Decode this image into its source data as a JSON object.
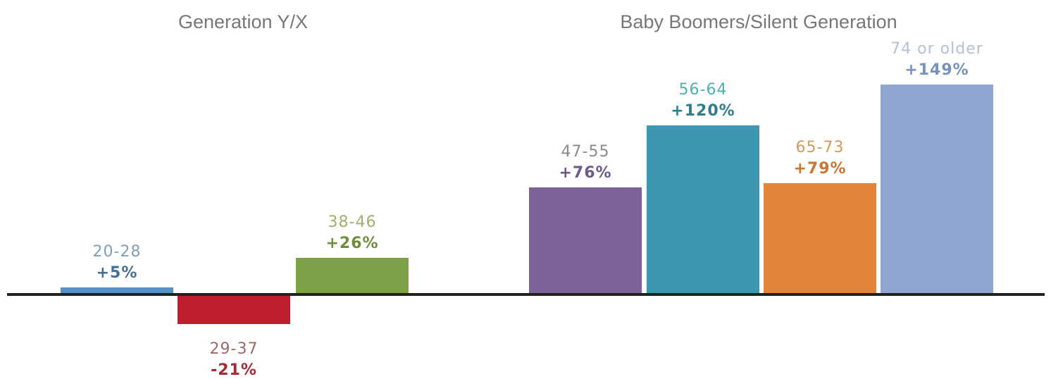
{
  "chart_data": {
    "type": "bar",
    "groups": [
      {
        "title": "Generation Y/X",
        "categories": [
          "20-28",
          "29-37",
          "38-46"
        ]
      },
      {
        "title": "Baby Boomers/Silent Generation",
        "categories": [
          "47-55",
          "56-64",
          "65-73",
          "74 or older"
        ]
      }
    ],
    "categories": [
      "20-28",
      "29-37",
      "38-46",
      "47-55",
      "56-64",
      "65-73",
      "74 or older"
    ],
    "values": [
      5,
      -21,
      26,
      76,
      120,
      79,
      149
    ],
    "value_labels": [
      "+5%",
      "-21%",
      "+26%",
      "+76%",
      "+120%",
      "+79%",
      "+149%"
    ],
    "unit": "%",
    "colors": [
      "#5b8fbf",
      "#be1e2d",
      "#7ea046",
      "#7d619b",
      "#3f96b0",
      "#e2843a",
      "#8ea6cf"
    ],
    "category_label_colors": [
      "#7f9fb8",
      "#a06a6a",
      "#9eb070",
      "#8a8a8a",
      "#4fb0b0",
      "#d49a5a",
      "#b4c0d4"
    ],
    "value_label_colors": [
      "#466f95",
      "#a22b35",
      "#6e8e3e",
      "#6b5a8a",
      "#2f7c8c",
      "#c67833",
      "#7891bf"
    ],
    "ylim": [
      -30,
      160
    ],
    "baseline": 0,
    "grid": false,
    "legend": "none"
  }
}
